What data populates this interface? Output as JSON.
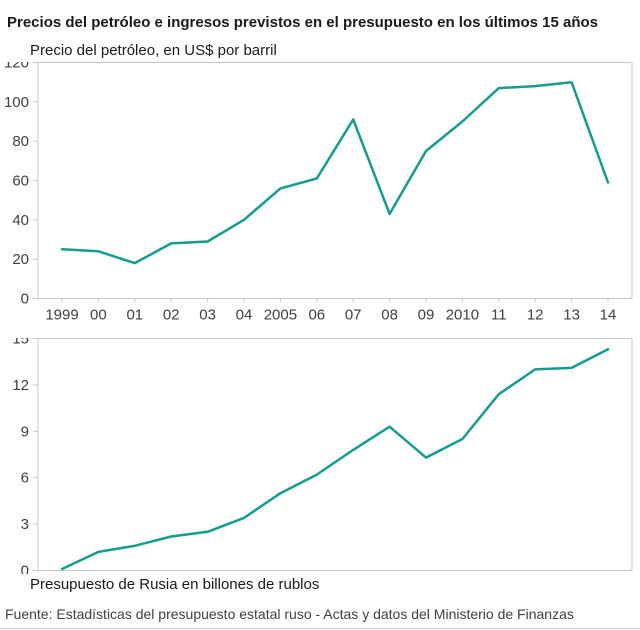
{
  "page": {
    "title": "Precios del petróleo e ingresos previstos en el presupuesto en los últimos 15 años",
    "source": "Fuente: Estadísticas del presupuesto estatal ruso - Actas y datos del Ministerio de Finanzas"
  },
  "chart_data": [
    {
      "type": "line",
      "title": "Precio del petróleo, en US$ por barril",
      "categories": [
        "1999",
        "00",
        "01",
        "02",
        "03",
        "04",
        "2005",
        "06",
        "07",
        "08",
        "09",
        "2010",
        "11",
        "12",
        "13",
        "14"
      ],
      "values": [
        25,
        24,
        18,
        28,
        29,
        40,
        56,
        61,
        91,
        43,
        75,
        90,
        107,
        108,
        110,
        59
      ],
      "ylim": [
        0,
        120
      ],
      "yticks": [
        0,
        20,
        40,
        60,
        80,
        100,
        120
      ],
      "line_color": "#169b8f",
      "grid": false,
      "legend": "none",
      "show_x_labels": true
    },
    {
      "type": "line",
      "title": "Presupuesto de Rusia en billones de rublos",
      "categories": [
        "1999",
        "00",
        "01",
        "02",
        "03",
        "04",
        "2005",
        "06",
        "07",
        "08",
        "09",
        "2010",
        "11",
        "12",
        "13",
        "14"
      ],
      "values": [
        0.1,
        1.2,
        1.6,
        2.2,
        2.5,
        3.4,
        5.0,
        6.2,
        7.8,
        9.3,
        7.3,
        8.5,
        11.4,
        13.0,
        13.1,
        14.3
      ],
      "ylim": [
        0,
        15
      ],
      "yticks": [
        0,
        3,
        6,
        9,
        12,
        15
      ],
      "line_color": "#169b8f",
      "grid": false,
      "legend": "none",
      "show_x_labels": false
    }
  ]
}
